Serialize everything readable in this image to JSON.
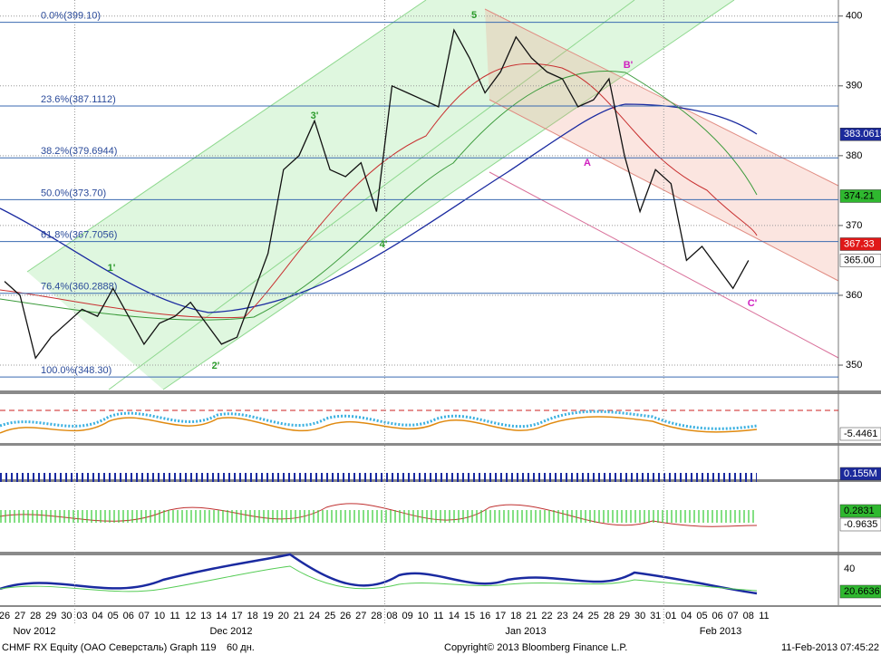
{
  "chart_data": {
    "type": "line",
    "categories": [
      "26",
      "27",
      "28",
      "29",
      "30",
      "03",
      "04",
      "05",
      "06",
      "07",
      "10",
      "11",
      "12",
      "13",
      "14",
      "17",
      "18",
      "19",
      "20",
      "21",
      "24",
      "25",
      "26",
      "27",
      "28",
      "08",
      "09",
      "10",
      "11",
      "14",
      "15",
      "16",
      "17",
      "18",
      "21",
      "22",
      "23",
      "24",
      "25",
      "28",
      "29",
      "30",
      "31",
      "01",
      "04",
      "05",
      "06",
      "07",
      "08",
      "11"
    ],
    "values": [
      362,
      360,
      351,
      354,
      356,
      358,
      357,
      361,
      357,
      353,
      356,
      357,
      359,
      356,
      353,
      354,
      360,
      366,
      378,
      380,
      385,
      378,
      377,
      379,
      372,
      390,
      389,
      388,
      387,
      398,
      394,
      389,
      392,
      397,
      394,
      392,
      391,
      387,
      388,
      391,
      380,
      372,
      378,
      376,
      365,
      367,
      364,
      361,
      365,
      null
    ],
    "color": "#111111",
    "ylim": [
      346.5,
      402.3
    ],
    "yticks": [
      350,
      360,
      370,
      380,
      390,
      400
    ],
    "grid": true,
    "months": [
      "Nov 2012",
      "Dec 2012",
      "Jan 2013",
      "Feb 2013"
    ],
    "fib_levels": [
      {
        "label": "0.0%(399.10)",
        "value": 399.1
      },
      {
        "label": "23.6%(387.1112)",
        "value": 387.1112
      },
      {
        "label": "38.2%(379.6944)",
        "value": 379.6944
      },
      {
        "label": "50.0%(373.70)",
        "value": 373.7
      },
      {
        "label": "61.8%(367.7056)",
        "value": 367.7056
      },
      {
        "label": "76.4%(360.2888)",
        "value": 360.2888
      },
      {
        "label": "100.0%(348.30)",
        "value": 348.3
      }
    ],
    "axis_labels": [
      {
        "label": "383.0615",
        "value": 383.0615,
        "color": "#1c2a9c"
      },
      {
        "label": "374.21",
        "value": 374.21,
        "color": "#2fb82f"
      },
      {
        "label": "367.33",
        "value": 367.33,
        "color": "#e01818"
      },
      {
        "label": "365.00",
        "value": 365,
        "color": "#ffffff"
      }
    ],
    "annotations": [
      "5",
      "3'",
      "1'",
      "2'",
      "4'",
      "A",
      "B'",
      "C'"
    ],
    "indicator_labels": [
      "-5.4461",
      "0.155M",
      "0.2831",
      "-0.9635",
      "40",
      "20.6636"
    ]
  },
  "footer": {
    "security": "CHMF RX Equity (OAO Северсталь) Graph 119",
    "period": "60 дн.",
    "copyright": "Copyright© 2013 Bloomberg Finance L.P.",
    "timestamp": "11-Feb-2013 07:45:22"
  }
}
